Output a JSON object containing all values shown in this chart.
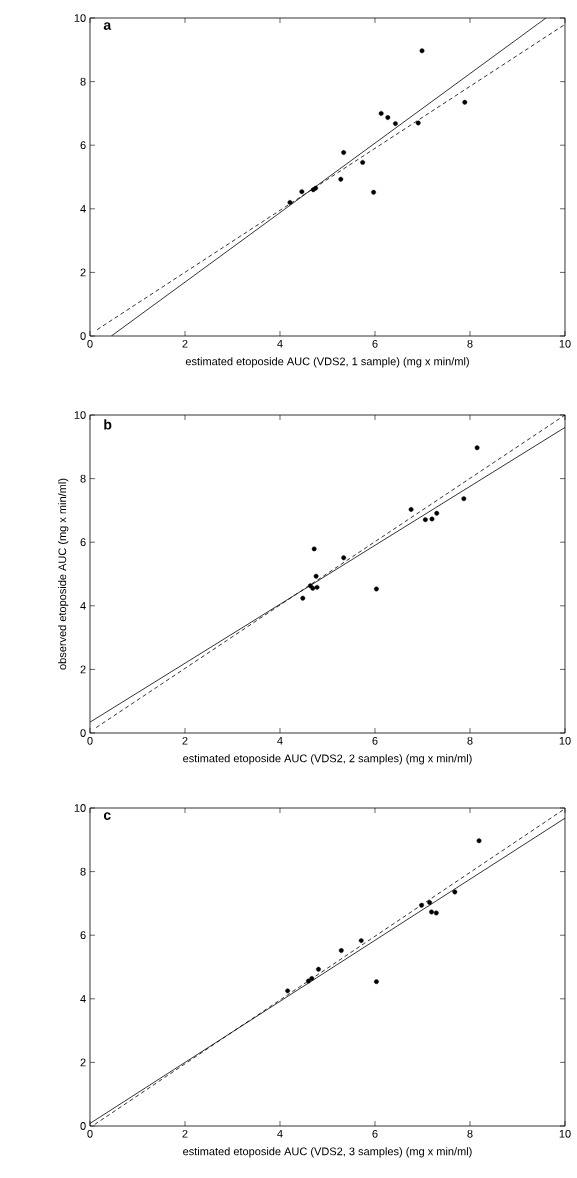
{
  "chart_data": [
    {
      "type": "scatter",
      "title": "a",
      "xlabel": "estimated etoposide AUC (VDS2, 1 sample) (mg x min/ml)",
      "xlim": [
        0,
        10
      ],
      "ylim": [
        0,
        10
      ],
      "xticks": [
        0,
        2,
        4,
        6,
        8,
        10
      ],
      "yticks": [
        0,
        2,
        4,
        6,
        8,
        10
      ],
      "series": [
        {
          "type": "scatter",
          "marker": "circle",
          "color": "#000000",
          "x": [
            4.21,
            4.46,
            4.7,
            4.75,
            5.28,
            5.34,
            5.74,
            5.97,
            6.13,
            6.27,
            6.43,
            6.91,
            6.99,
            7.89
          ],
          "values": [
            4.2,
            4.54,
            4.6,
            4.65,
            4.93,
            5.77,
            5.46,
            4.52,
            7.0,
            6.87,
            6.68,
            6.7,
            8.97,
            7.35
          ]
        },
        {
          "type": "line",
          "marker": "none",
          "color": "#000000",
          "line_style": "solid",
          "x": [
            0.45,
            9.6
          ],
          "values": [
            0,
            10
          ]
        },
        {
          "type": "line",
          "marker": "none",
          "color": "#000000",
          "line_style": "dashed",
          "x": [
            0.15,
            10
          ],
          "values": [
            0.2,
            9.8
          ]
        }
      ]
    },
    {
      "type": "scatter",
      "title": "b",
      "xlabel": "estimated etoposide AUC (VDS2, 2 samples) (mg x min/ml)",
      "ylabel": "observed etoposide AUC (mg x min/ml)",
      "xlim": [
        0,
        10
      ],
      "ylim": [
        0,
        10
      ],
      "xticks": [
        0,
        2,
        4,
        6,
        8,
        10
      ],
      "yticks": [
        0,
        2,
        4,
        6,
        8,
        10
      ],
      "series": [
        {
          "type": "scatter",
          "marker": "circle",
          "color": "#000000",
          "x": [
            4.48,
            4.64,
            4.69,
            4.78,
            4.72,
            4.76,
            5.34,
            6.03,
            6.76,
            7.06,
            7.2,
            7.3,
            7.87,
            8.15
          ],
          "values": [
            4.24,
            4.63,
            4.55,
            4.58,
            5.79,
            4.93,
            5.51,
            4.53,
            7.03,
            6.71,
            6.73,
            6.91,
            7.37,
            8.97
          ]
        },
        {
          "type": "line",
          "marker": "none",
          "color": "#000000",
          "line_style": "solid",
          "x": [
            0,
            10
          ],
          "values": [
            0.34,
            9.61
          ]
        },
        {
          "type": "line",
          "marker": "none",
          "color": "#000000",
          "line_style": "dashed",
          "x": [
            0.13,
            10
          ],
          "values": [
            0.17,
            10
          ]
        }
      ]
    },
    {
      "type": "scatter",
      "title": "c",
      "xlabel": "estimated etoposide AUC (VDS2, 3 samples) (mg x min/ml)",
      "xlim": [
        0,
        10
      ],
      "ylim": [
        0,
        10
      ],
      "xticks": [
        0,
        2,
        4,
        6,
        8,
        10
      ],
      "yticks": [
        0,
        2,
        4,
        6,
        8,
        10
      ],
      "series": [
        {
          "type": "scatter",
          "marker": "circle",
          "color": "#000000",
          "x": [
            4.16,
            4.6,
            4.67,
            4.81,
            5.29,
            5.71,
            6.03,
            6.98,
            7.15,
            7.19,
            7.29,
            7.68,
            8.19
          ],
          "values": [
            4.25,
            4.56,
            4.64,
            4.93,
            5.52,
            5.83,
            4.54,
            6.94,
            7.03,
            6.73,
            6.7,
            7.36,
            8.97
          ]
        },
        {
          "type": "line",
          "marker": "none",
          "color": "#000000",
          "line_style": "solid",
          "x": [
            0,
            10
          ],
          "values": [
            0.08,
            9.68
          ]
        },
        {
          "type": "line",
          "marker": "none",
          "color": "#000000",
          "line_style": "dashed",
          "x": [
            0.1,
            10
          ],
          "values": [
            0.05,
            9.98
          ]
        }
      ]
    }
  ]
}
